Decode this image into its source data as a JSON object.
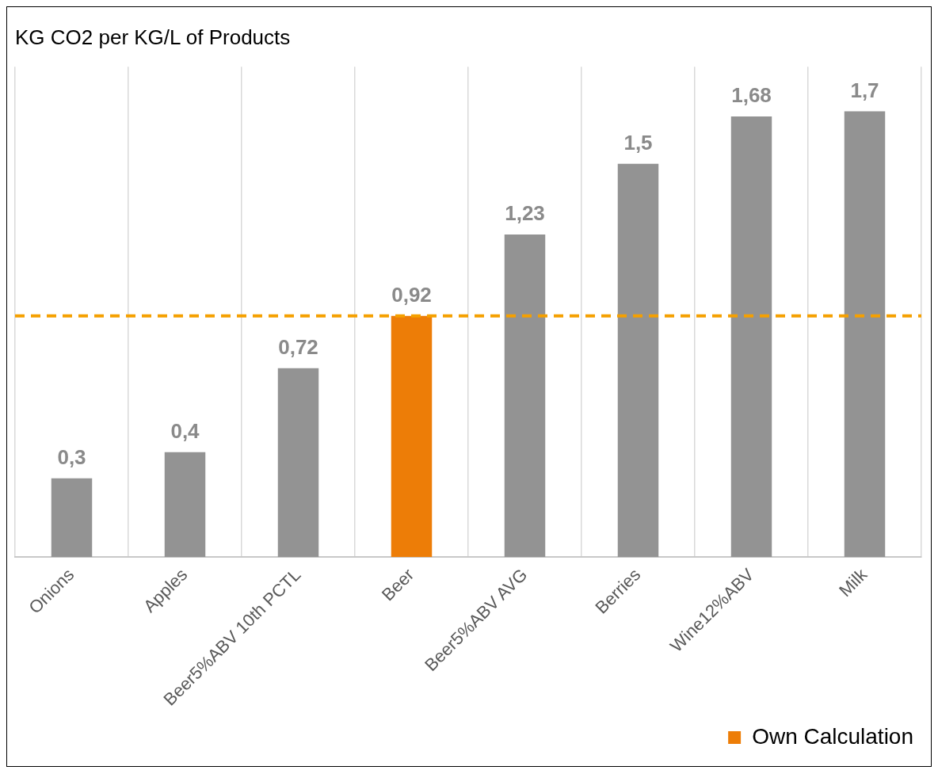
{
  "chart_data": {
    "type": "bar",
    "title": "KG CO2 per KG/L of Products",
    "categories": [
      "Onions",
      "Apples",
      "Beer5%ABV 10th PCTL",
      "Beer",
      "Beer5%ABV AVG",
      "Berries",
      "Wine12%ABV",
      "Milk"
    ],
    "stacked": true,
    "series": [
      {
        "color": "#939393",
        "values": [
          0.3,
          0.4,
          0.72,
          null,
          1.23,
          1.5,
          1.68,
          1.7
        ],
        "value_labels": [
          "0,3",
          "0,4",
          "0,72",
          null,
          "1,23",
          "1,5",
          "1,68",
          "1,7"
        ]
      },
      {
        "name": "Own Calculation",
        "color": "#ed7d07",
        "values": [
          null,
          null,
          null,
          0.92,
          null,
          null,
          null,
          null
        ],
        "value_labels": [
          null,
          null,
          null,
          "0,92",
          null,
          null,
          null,
          null
        ]
      }
    ],
    "ref_lines": [
      {
        "axis": "y",
        "value": 0.92,
        "color": "#f5a000",
        "line_style": "dashed"
      }
    ],
    "grid": "x",
    "legend": "bottom right"
  }
}
